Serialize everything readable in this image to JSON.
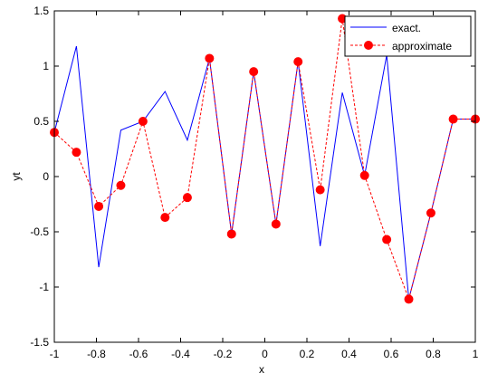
{
  "chart_data": {
    "type": "line",
    "xlabel": "x",
    "ylabel": "yt",
    "xlim": [
      -1,
      1
    ],
    "ylim": [
      -1.5,
      1.5
    ],
    "xticks": [
      -1,
      -0.8,
      -0.6,
      -0.4,
      -0.2,
      0,
      0.2,
      0.4,
      0.6,
      0.8,
      1
    ],
    "xtick_labels": [
      "-1",
      "-0.8",
      "-0.6",
      "-0.4",
      "-0.2",
      "0",
      "0.2",
      "0.4",
      "0.6",
      "0.8",
      "1"
    ],
    "yticks": [
      -1.5,
      -1,
      -0.5,
      0,
      0.5,
      1,
      1.5
    ],
    "ytick_labels": [
      "-1.5",
      "-1",
      "-0.5",
      "0",
      "0.5",
      "1",
      "1.5"
    ],
    "grid": false,
    "legend_position": "top-right",
    "series": [
      {
        "name": "exact.",
        "color": "#0000ff",
        "style": "solid",
        "marker": "none",
        "x": [
          -1,
          -0.895,
          -0.789,
          -0.684,
          -0.579,
          -0.474,
          -0.368,
          -0.263,
          -0.158,
          -0.053,
          0.053,
          0.158,
          0.263,
          0.368,
          0.474,
          0.579,
          0.684,
          0.789,
          0.895,
          1
        ],
        "y": [
          0.4,
          1.18,
          -0.82,
          0.42,
          0.5,
          0.77,
          0.33,
          1.07,
          -0.52,
          0.95,
          -0.43,
          1.04,
          -0.63,
          0.76,
          0.01,
          1.1,
          -1.11,
          -0.33,
          0.52,
          0.52
        ]
      },
      {
        "name": "approximate",
        "color": "#ff0000",
        "style": "dashed",
        "marker": "circle",
        "x": [
          -1,
          -0.895,
          -0.789,
          -0.684,
          -0.579,
          -0.474,
          -0.368,
          -0.263,
          -0.158,
          -0.053,
          0.053,
          0.158,
          0.263,
          0.368,
          0.474,
          0.579,
          0.684,
          0.789,
          0.895,
          1
        ],
        "y": [
          0.4,
          0.22,
          -0.27,
          -0.08,
          0.5,
          -0.37,
          -0.19,
          1.07,
          -0.52,
          0.95,
          -0.43,
          1.04,
          -0.12,
          1.43,
          0.01,
          -0.57,
          -1.11,
          -0.33,
          0.52,
          0.52
        ]
      }
    ]
  }
}
